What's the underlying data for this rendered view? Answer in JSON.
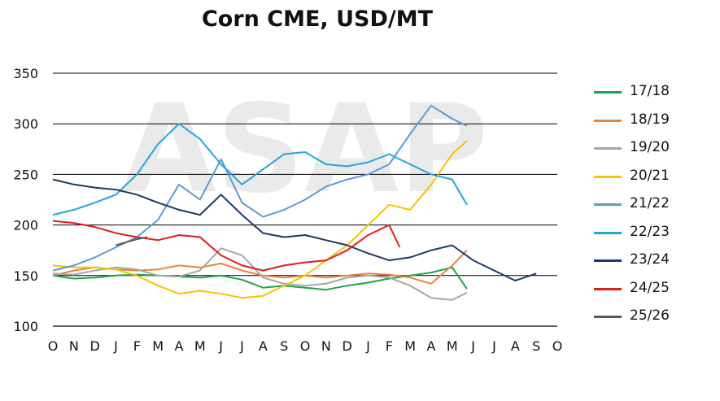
{
  "title": "Corn CME, USD/MT",
  "chart_data": {
    "type": "line",
    "title": "Corn CME, USD/MT",
    "xlabel": "",
    "ylabel": "",
    "ylim": [
      100,
      350
    ],
    "yticks": [
      100,
      150,
      200,
      250,
      300,
      350
    ],
    "x_tick_labels": [
      "O",
      "N",
      "D",
      "J",
      "F",
      "M",
      "A",
      "M",
      "J",
      "J",
      "A",
      "S",
      "O",
      "N",
      "D",
      "J",
      "F",
      "M",
      "A",
      "M",
      "J",
      "J",
      "A",
      "S",
      "O"
    ],
    "grid": true,
    "legend_position": "right",
    "watermark": "ASAP",
    "series": [
      {
        "name": "17/18",
        "color": "#1aa64a",
        "x": [
          0,
          1,
          2,
          3,
          4,
          5,
          6,
          7,
          8,
          9,
          10,
          11,
          12,
          13,
          14,
          15,
          16,
          17,
          18,
          19,
          19.7
        ],
        "y": [
          150,
          147,
          148,
          150,
          151,
          150,
          149,
          148,
          150,
          146,
          138,
          140,
          138,
          136,
          140,
          143,
          147,
          150,
          153,
          158,
          137
        ]
      },
      {
        "name": "18/19",
        "color": "#e3853a",
        "x": [
          0,
          1,
          2,
          3,
          4,
          5,
          6,
          7,
          8,
          9,
          10,
          11,
          12,
          13,
          14,
          15,
          16,
          17,
          18,
          19,
          19.7
        ],
        "y": [
          150,
          155,
          158,
          156,
          155,
          156,
          160,
          158,
          162,
          155,
          150,
          148,
          150,
          148,
          150,
          152,
          151,
          148,
          142,
          160,
          175
        ]
      },
      {
        "name": "19/20",
        "color": "#a6a6a6",
        "x": [
          0,
          1,
          2,
          3,
          4,
          5,
          6,
          7,
          8,
          9,
          10,
          11,
          12,
          13,
          14,
          15,
          16,
          17,
          18,
          19,
          19.7
        ],
        "y": [
          152,
          151,
          155,
          158,
          156,
          150,
          149,
          155,
          177,
          170,
          148,
          142,
          140,
          142,
          148,
          150,
          148,
          140,
          128,
          126,
          133
        ]
      },
      {
        "name": "20/21",
        "color": "#f5c400",
        "x": [
          0,
          1,
          2,
          3,
          4,
          5,
          6,
          7,
          8,
          9,
          10,
          11,
          12,
          13,
          14,
          15,
          16,
          17,
          18,
          19,
          19.7
        ],
        "y": [
          160,
          158,
          158,
          156,
          150,
          140,
          132,
          135,
          132,
          128,
          130,
          140,
          150,
          165,
          180,
          200,
          220,
          215,
          240,
          270,
          283
        ]
      },
      {
        "name": "21/22",
        "color": "#5b9bd5",
        "x": [
          0,
          1,
          2,
          3,
          4,
          5,
          6,
          7,
          8,
          9,
          10,
          11,
          12,
          13,
          14,
          15,
          16,
          17,
          18,
          19,
          19.7
        ],
        "y": [
          155,
          160,
          168,
          178,
          188,
          205,
          240,
          225,
          265,
          222,
          208,
          215,
          225,
          238,
          245,
          250,
          260,
          290,
          318,
          305,
          298
        ]
      },
      {
        "name": "22/23",
        "color": "#1fa8dc",
        "x": [
          0,
          1,
          2,
          3,
          4,
          5,
          6,
          7,
          8,
          9,
          10,
          11,
          12,
          13,
          14,
          15,
          16,
          17,
          18,
          19,
          19.7
        ],
        "y": [
          210,
          215,
          222,
          230,
          250,
          280,
          300,
          285,
          260,
          240,
          255,
          270,
          272,
          260,
          258,
          262,
          270,
          260,
          250,
          245,
          220
        ]
      },
      {
        "name": "23/24",
        "color": "#1f3864",
        "x": [
          0,
          1,
          2,
          3,
          4,
          5,
          6,
          7,
          8,
          9,
          10,
          11,
          12,
          13,
          14,
          15,
          16,
          17,
          18,
          19,
          20,
          21,
          22,
          23
        ],
        "y": [
          245,
          240,
          237,
          235,
          230,
          222,
          215,
          210,
          230,
          210,
          192,
          188,
          190,
          185,
          180,
          172,
          165,
          168,
          175,
          180,
          165,
          155,
          145,
          152
        ]
      },
      {
        "name": "24/25",
        "color": "#e41b1b",
        "x": [
          0,
          1,
          2,
          3,
          4,
          5,
          6,
          7,
          8,
          9,
          10,
          11,
          12,
          13,
          14,
          15,
          16,
          16.5
        ],
        "y": [
          204,
          202,
          198,
          192,
          188,
          185,
          190,
          188,
          170,
          160,
          155,
          160,
          163,
          165,
          175,
          190,
          200,
          178
        ]
      },
      {
        "name": "25/26",
        "color": "#595959",
        "x": [
          3,
          3.5,
          4,
          4.5
        ],
        "y": [
          180,
          183,
          186,
          188
        ]
      }
    ]
  }
}
